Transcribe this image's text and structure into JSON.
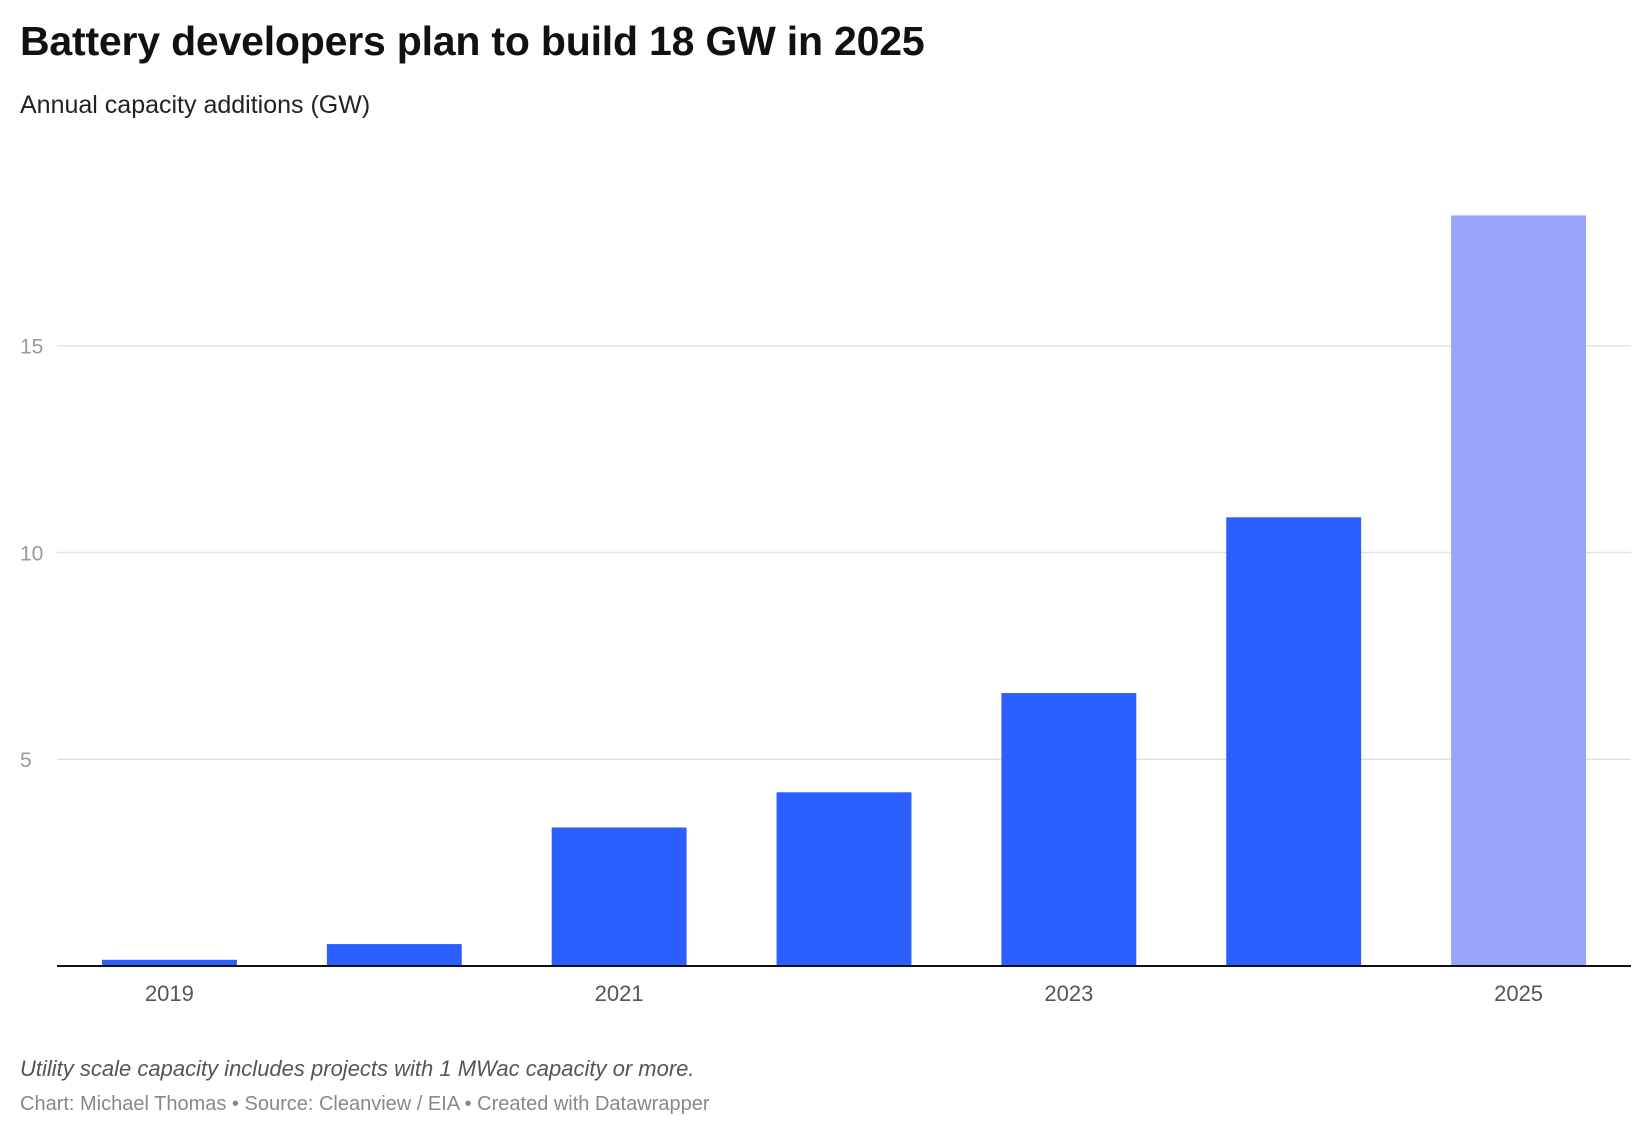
{
  "header": {
    "title": "Battery developers plan to build 18 GW in 2025",
    "subtitle": "Annual capacity additions (GW)"
  },
  "footer": {
    "note": "Utility scale capacity includes projects with 1 MWac capacity or more.",
    "credits": "Chart: Michael Thomas • Source: Cleanview / EIA • Created with Datawrapper"
  },
  "colors": {
    "actual": "#2b5fff",
    "planned": "#98a3fb",
    "grid": "#e2e2e2",
    "axis": "#111111"
  },
  "chart_data": {
    "type": "bar",
    "title": "Battery developers plan to build 18 GW in 2025",
    "subtitle": "Annual capacity additions (GW)",
    "xlabel": "",
    "ylabel": "",
    "categories": [
      "2019",
      "2020",
      "2021",
      "2022",
      "2023",
      "2024",
      "2025"
    ],
    "values": [
      0.15,
      0.53,
      3.35,
      4.2,
      6.6,
      10.85,
      18.15
    ],
    "bar_status": [
      "actual",
      "actual",
      "actual",
      "actual",
      "actual",
      "actual",
      "planned"
    ],
    "x_tick_labels": [
      "2019",
      "",
      "2021",
      "",
      "2023",
      "",
      "2025"
    ],
    "y_ticks": [
      5,
      10,
      15
    ],
    "ylim": [
      0,
      19.2
    ],
    "grid": true,
    "legend": "none"
  }
}
